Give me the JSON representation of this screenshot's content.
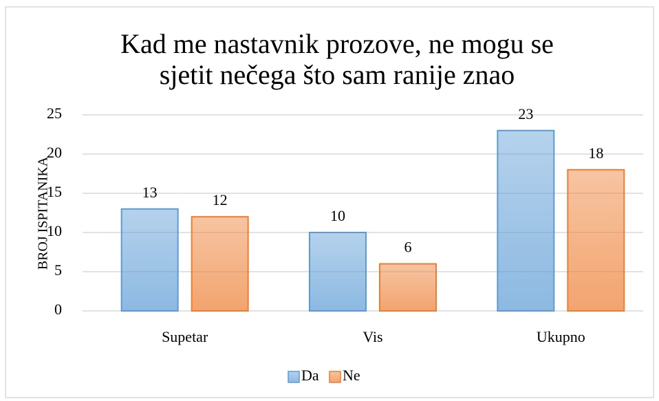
{
  "chart_data": {
    "type": "bar",
    "title": [
      "Kad me nastavnik prozove, ne mogu se",
      "sjetit nečega što sam  ranije znao"
    ],
    "y_label": "BROJ ISPITANIKA",
    "categories": [
      "Supetar",
      "Vis",
      "Ukupno"
    ],
    "series": [
      {
        "name": "Da",
        "color": "#5b9bd5",
        "values": [
          13,
          10,
          23
        ]
      },
      {
        "name": "Ne",
        "color": "#ed7d31",
        "values": [
          12,
          6,
          18
        ]
      }
    ],
    "ylim": [
      0,
      25
    ],
    "yticks": [
      0,
      5,
      10,
      15,
      20,
      25
    ],
    "grid": true,
    "legend": "bottom"
  }
}
